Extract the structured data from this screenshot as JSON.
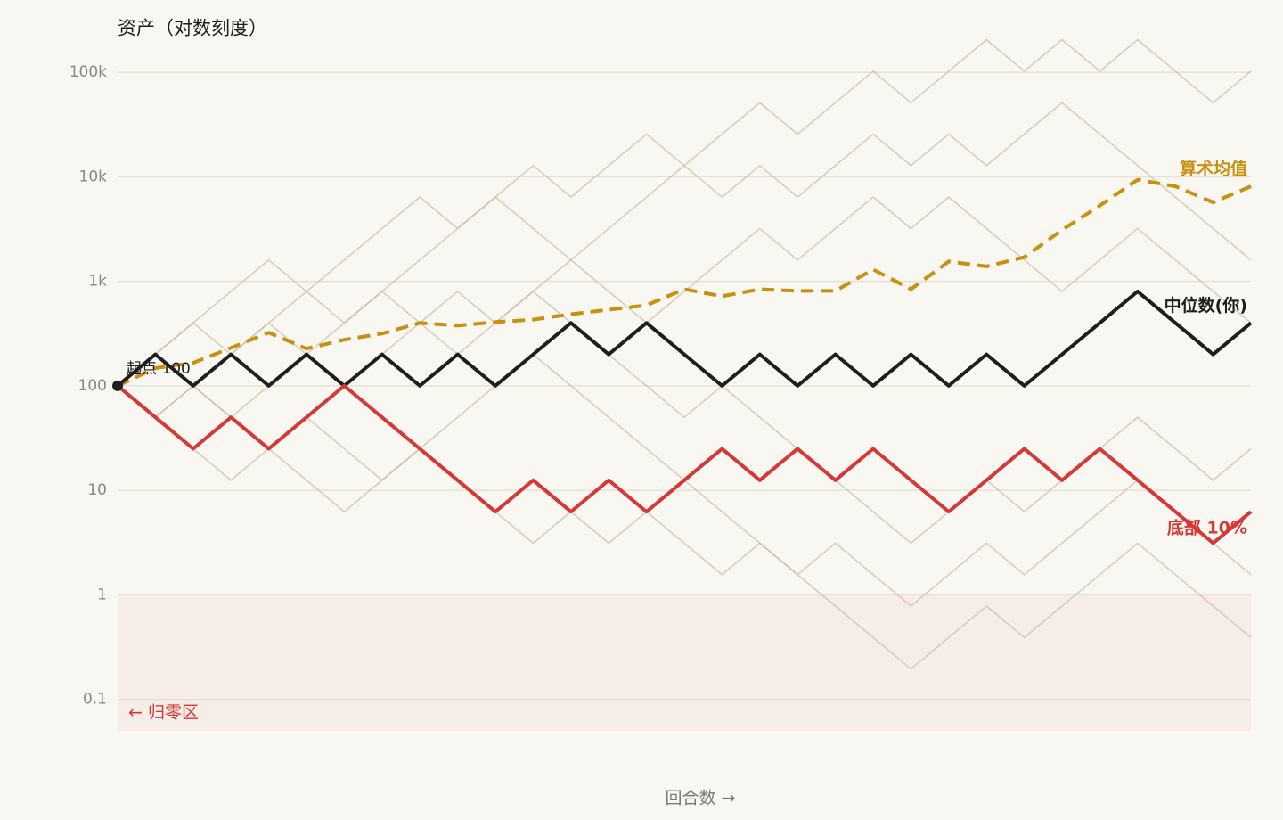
{
  "chart_data": {
    "type": "line",
    "title": "资产（对数刻度）",
    "x_label": "回合数 →",
    "log_scale": true,
    "grid": true,
    "x": [
      0,
      1,
      2,
      3,
      4,
      5,
      6,
      7,
      8,
      9,
      10,
      11,
      12,
      13,
      14,
      15,
      16,
      17,
      18,
      19,
      20,
      21,
      22,
      23,
      24,
      25,
      26,
      27,
      28,
      29,
      30
    ],
    "xlim": [
      0,
      30
    ],
    "ylim": [
      0.05,
      220000
    ],
    "yticks": [
      0.1,
      1,
      10,
      100,
      {
        "value": 1000,
        "label": "1k"
      },
      {
        "value": 10000,
        "label": "10k"
      },
      {
        "value": 100000,
        "label": "100k"
      }
    ],
    "ruin_threshold": 1,
    "ruin_label": "← 归零区",
    "start_label": "起点 100",
    "background_color": "#c9bca6",
    "background_paths": [
      [
        100,
        200,
        400,
        800,
        1600,
        800,
        1600,
        3200,
        6400,
        3200,
        6400,
        12800,
        6400,
        12800,
        25600,
        12800,
        25600,
        51200,
        25600,
        51200,
        102400,
        51200,
        102400,
        204800,
        102400,
        204800,
        102400,
        204800,
        102400,
        51200,
        102400
      ],
      [
        100,
        50,
        100,
        200,
        400,
        200,
        100,
        200,
        400,
        800,
        400,
        800,
        1600,
        800,
        400,
        800,
        1600,
        3200,
        1600,
        3200,
        6400,
        3200,
        6400,
        3200,
        1600,
        800,
        1600,
        3200,
        1600,
        800,
        400
      ],
      [
        100,
        50,
        25,
        12.5,
        25,
        12.5,
        6.25,
        12.5,
        25,
        12.5,
        6.25,
        3.125,
        6.25,
        3.125,
        6.25,
        3.125,
        1.5625,
        3.125,
        1.5625,
        3.125,
        1.5625,
        0.78125,
        1.5625,
        3.125,
        1.5625,
        3.125,
        6.25,
        12.5,
        6.25,
        3.125,
        1.5625
      ],
      [
        100,
        200,
        100,
        50,
        100,
        200,
        400,
        800,
        400,
        200,
        400,
        800,
        400,
        200,
        100,
        50,
        100,
        50,
        25,
        12.5,
        6.25,
        3.125,
        6.25,
        12.5,
        6.25,
        12.5,
        25,
        50,
        25,
        12.5,
        25
      ],
      [
        100,
        200,
        400,
        200,
        400,
        800,
        400,
        800,
        1600,
        3200,
        6400,
        3200,
        1600,
        3200,
        6400,
        12800,
        6400,
        12800,
        6400,
        12800,
        25600,
        12800,
        25600,
        12800,
        25600,
        51200,
        25600,
        12800,
        6400,
        3200,
        1600
      ],
      [
        100,
        50,
        100,
        50,
        25,
        50,
        25,
        12.5,
        25,
        50,
        100,
        200,
        100,
        50,
        25,
        12.5,
        6.25,
        3.125,
        1.5625,
        0.78125,
        0.390625,
        0.1953125,
        0.390625,
        0.78125,
        0.390625,
        0.78125,
        1.5625,
        3.125,
        1.5625,
        0.78125,
        0.390625
      ]
    ],
    "series": [
      {
        "name": "算术均值",
        "color": "#c8900f",
        "dashed": true,
        "values": [
          100,
          148,
          166,
          231,
          323,
          227,
          276,
          316,
          400,
          377,
          408,
          430,
          485,
          535,
          590,
          840,
          720,
          840,
          810,
          810,
          1300,
          840,
          1550,
          1390,
          1700,
          3100,
          5300,
          9400,
          8100,
          5700,
          8100
        ]
      },
      {
        "name": "中位数(你)",
        "color": "#1e1e1e",
        "dashed": false,
        "values": [
          100,
          200,
          100,
          200,
          100,
          200,
          100,
          200,
          100,
          200,
          100,
          200,
          400,
          200,
          400,
          200,
          100,
          200,
          100,
          200,
          100,
          200,
          100,
          200,
          100,
          200,
          400,
          800,
          400,
          200,
          400
        ]
      },
      {
        "name": "底部 10%",
        "color": "#d63838",
        "dashed": false,
        "values": [
          100,
          50,
          25,
          50,
          25,
          50,
          100,
          50,
          25,
          12.5,
          6.25,
          12.5,
          6.25,
          12.5,
          6.25,
          12.5,
          25,
          12.5,
          25,
          12.5,
          25,
          12.5,
          6.25,
          12.5,
          25,
          12.5,
          25,
          12.5,
          6.25,
          3.125,
          6.25
        ]
      }
    ]
  }
}
